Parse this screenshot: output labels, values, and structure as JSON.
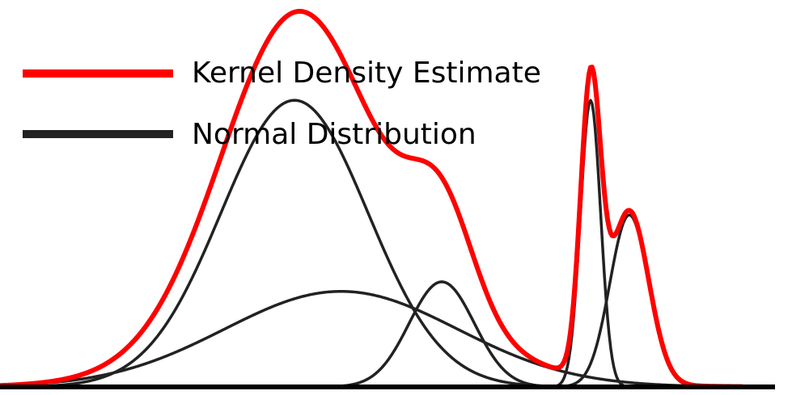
{
  "chart_data": {
    "type": "line",
    "title": "",
    "xlabel": "",
    "ylabel": "",
    "xlim": [
      0,
      1000
    ],
    "ylim": [
      0,
      1
    ],
    "grid": false,
    "axes_visible": false,
    "baseline_visible": true,
    "legend_position": "top-left",
    "legend": [
      {
        "label": "Kernel Density Estimate",
        "color": "#ff0000",
        "series": "kde"
      },
      {
        "label": "Normal Distribution",
        "color": "#222222",
        "series": "normal"
      }
    ],
    "series": [
      {
        "id": "kde",
        "color": "#ff0000",
        "style": "thick",
        "components": [
          {
            "mu": 380,
            "sigma": 95,
            "weight": 0.3
          },
          {
            "mu": 440,
            "sigma": 150,
            "weight": 0.1
          },
          {
            "mu": 570,
            "sigma": 42,
            "weight": 0.11
          },
          {
            "mu": 762,
            "sigma": 13,
            "weight": 0.3
          },
          {
            "mu": 812,
            "sigma": 25,
            "weight": 0.18
          }
        ]
      },
      {
        "id": "normal-1",
        "color": "#222222",
        "style": "thin",
        "components": [
          {
            "mu": 380,
            "sigma": 95,
            "weight": 0.3
          }
        ]
      },
      {
        "id": "normal-2",
        "color": "#222222",
        "style": "thin",
        "components": [
          {
            "mu": 440,
            "sigma": 150,
            "weight": 0.1
          }
        ]
      },
      {
        "id": "normal-3",
        "color": "#222222",
        "style": "thin",
        "components": [
          {
            "mu": 570,
            "sigma": 42,
            "weight": 0.11
          }
        ]
      },
      {
        "id": "normal-4",
        "color": "#222222",
        "style": "thin",
        "components": [
          {
            "mu": 762,
            "sigma": 13,
            "weight": 0.3
          }
        ]
      },
      {
        "id": "normal-5",
        "color": "#222222",
        "style": "thin",
        "components": [
          {
            "mu": 812,
            "sigma": 25,
            "weight": 0.18
          }
        ]
      }
    ]
  }
}
